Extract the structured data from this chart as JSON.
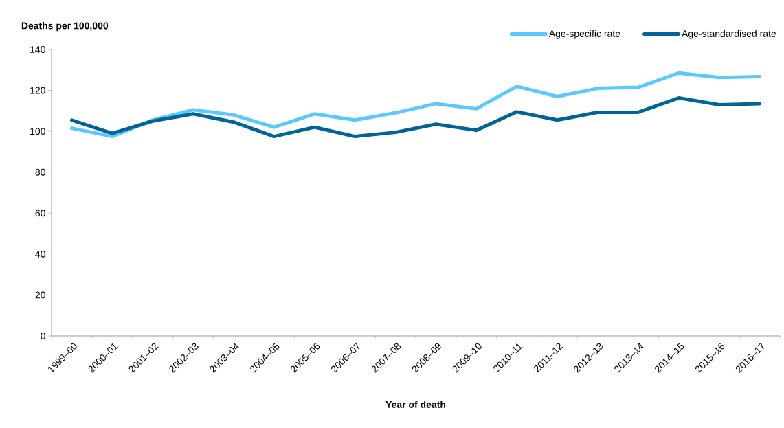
{
  "chart_data": {
    "type": "line",
    "ylabel": "Deaths per 100,000",
    "xlabel": "Year of death",
    "categories": [
      "1999–00",
      "2000–01",
      "2001–02",
      "2002–03",
      "2003–04",
      "2004–05",
      "2005–06",
      "2006–07",
      "2007–08",
      "2008–09",
      "2009–10",
      "2010–11",
      "2011–12",
      "2012–13",
      "2013–14",
      "2014–15",
      "2015–16",
      "2016–17"
    ],
    "series": [
      {
        "name": "Age-specific rate",
        "color": "#5bc8ff",
        "values": [
          101.5,
          97.5,
          105.5,
          110.5,
          108,
          102,
          108.5,
          105.5,
          109,
          113.5,
          111,
          122,
          117,
          121,
          121.5,
          128.5,
          126.3,
          126.7
        ]
      },
      {
        "name": "Age-standardised rate",
        "color": "#006496",
        "values": [
          105.5,
          99,
          105,
          108.5,
          104.5,
          97.5,
          102,
          97.5,
          99.5,
          103.5,
          100.5,
          109.5,
          105.5,
          109.3,
          109.3,
          116.3,
          113,
          113.5
        ]
      }
    ],
    "ylim": [
      0,
      140
    ],
    "yticks": [
      0,
      20,
      40,
      60,
      80,
      100,
      120,
      140
    ],
    "grid": false,
    "legend": "top right",
    "marker": "none",
    "line_style": "solid"
  }
}
